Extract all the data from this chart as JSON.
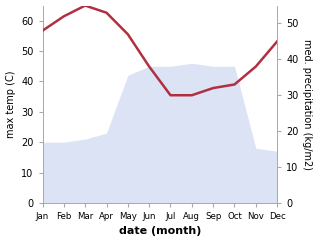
{
  "months": [
    "Jan",
    "Feb",
    "Mar",
    "Apr",
    "May",
    "Jun",
    "Jul",
    "Aug",
    "Sep",
    "Oct",
    "Nov",
    "Dec"
  ],
  "temperature": [
    20,
    20,
    21,
    23,
    42,
    45,
    45,
    46,
    45,
    45,
    18,
    17
  ],
  "precipitation_right": [
    48,
    52,
    55,
    53,
    47,
    38,
    30,
    30,
    32,
    33,
    38,
    45
  ],
  "temp_ylim": [
    0,
    65
  ],
  "precip_ylim": [
    0,
    55
  ],
  "temp_color": "#b03040",
  "precip_color": "#c0ccee",
  "ylabel_left": "max temp (C)",
  "ylabel_right": "med. precipitation (kg/m2)",
  "xlabel": "date (month)",
  "bg_color": "#ffffff",
  "spine_color": "#aaaaaa",
  "left_ticks": [
    0,
    10,
    20,
    30,
    40,
    50,
    60
  ],
  "right_ticks": [
    0,
    10,
    20,
    30,
    40,
    50
  ]
}
